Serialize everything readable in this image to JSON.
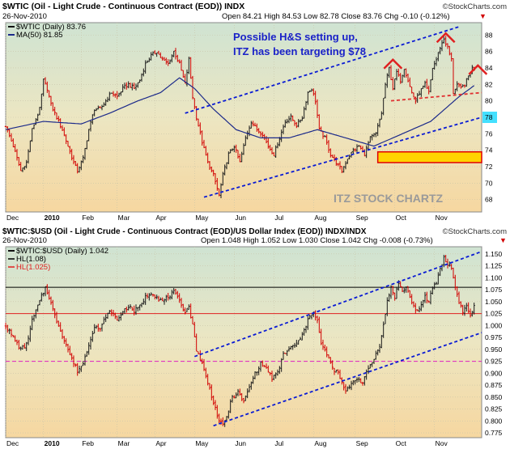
{
  "colors": {
    "price_up": "#1a1a1a",
    "price_down": "#d10000",
    "ma": "#1c2a8a",
    "channel": "#0a1bd4",
    "neckline": "#e03030",
    "hs_marker": "#e02020",
    "hl_black": "#000000",
    "hl_red": "#e02020",
    "hl_pink": "#e020c0",
    "annotation_text": "#1a22c8",
    "watermark": "#9a9a9a",
    "price_label_bg": "#44e0ff",
    "target_box": "#ffd400",
    "target_box_border": "#e00000"
  },
  "header": {
    "brand": "©StockCharts.com"
  },
  "chart_data": [
    {
      "type": "line",
      "panel": "top",
      "symbol_line": "$WTIC (Oil - Light Crude - Continuous Contract (EOD)) INDX",
      "date": "26-Nov-2010",
      "ohlc_line": "Open 84.21  High 84.53  Low 82.78  Close 83.76  Chg -0.10 (-0.12%)",
      "legend": [
        {
          "label": "$WTIC (Daily) 83.76",
          "key": "price"
        },
        {
          "label": "MA(50) 81.85",
          "key": "ma"
        }
      ],
      "annotation": [
        "Possible H&S setting up,",
        "ITZ has been targeting $78"
      ],
      "watermark": "ITZ STOCK CHARTZ",
      "current_price_label": "78",
      "y_ticks": [
        "68",
        "70",
        "72",
        "74",
        "76",
        "78",
        "80",
        "82",
        "84",
        "86",
        "88"
      ],
      "ylim": [
        66.5,
        89.5
      ],
      "x_ticks": [
        "Dec",
        "2010",
        "Feb",
        "Mar",
        "Apr",
        "May",
        "Jun",
        "Jul",
        "Aug",
        "Sep",
        "Oct",
        "Nov"
      ],
      "x_tick_positions": [
        0,
        20,
        40,
        59,
        79,
        100,
        121,
        142,
        163,
        185,
        206,
        227
      ],
      "xlim": [
        0,
        252
      ],
      "price_anchors": [
        [
          0,
          77.0
        ],
        [
          4,
          74.5
        ],
        [
          8,
          71.5
        ],
        [
          11,
          72.5
        ],
        [
          14,
          76.5
        ],
        [
          18,
          79.0
        ],
        [
          20,
          82.5
        ],
        [
          22,
          81.5
        ],
        [
          24,
          79.5
        ],
        [
          27,
          78.0
        ],
        [
          30,
          76.5
        ],
        [
          33,
          74.5
        ],
        [
          36,
          72.5
        ],
        [
          38,
          71.5
        ],
        [
          41,
          73.0
        ],
        [
          44,
          76.5
        ],
        [
          47,
          79.0
        ],
        [
          50,
          79.0
        ],
        [
          53,
          80.0
        ],
        [
          56,
          81.0
        ],
        [
          59,
          80.5
        ],
        [
          62,
          81.5
        ],
        [
          65,
          82.0
        ],
        [
          68,
          81.5
        ],
        [
          71,
          82.5
        ],
        [
          74,
          84.5
        ],
        [
          77,
          85.5
        ],
        [
          80,
          86.0
        ],
        [
          83,
          85.0
        ],
        [
          86,
          84.5
        ],
        [
          89,
          86.0
        ],
        [
          92,
          84.5
        ],
        [
          95,
          82.0
        ],
        [
          97,
          85.0
        ],
        [
          99,
          80.5
        ],
        [
          101,
          78.0
        ],
        [
          104,
          75.0
        ],
        [
          107,
          72.5
        ],
        [
          110,
          71.0
        ],
        [
          113,
          68.5
        ],
        [
          115,
          71.0
        ],
        [
          118,
          73.5
        ],
        [
          121,
          74.5
        ],
        [
          124,
          72.5
        ],
        [
          127,
          75.5
        ],
        [
          130,
          77.5
        ],
        [
          133,
          76.5
        ],
        [
          136,
          76.0
        ],
        [
          139,
          74.5
        ],
        [
          142,
          73.5
        ],
        [
          145,
          75.5
        ],
        [
          148,
          77.5
        ],
        [
          151,
          78.0
        ],
        [
          154,
          77.0
        ],
        [
          157,
          78.0
        ],
        [
          160,
          81.0
        ],
        [
          162,
          81.5
        ],
        [
          164,
          80.0
        ],
        [
          166,
          76.5
        ],
        [
          169,
          75.5
        ],
        [
          172,
          73.5
        ],
        [
          175,
          72.5
        ],
        [
          178,
          71.5
        ],
        [
          181,
          73.0
        ],
        [
          184,
          74.0
        ],
        [
          187,
          74.5
        ],
        [
          190,
          73.5
        ],
        [
          193,
          75.5
        ],
        [
          196,
          76.0
        ],
        [
          199,
          78.5
        ],
        [
          201,
          82.0
        ],
        [
          203,
          84.0
        ],
        [
          205,
          81.5
        ],
        [
          207,
          83.5
        ],
        [
          209,
          82.5
        ],
        [
          211,
          84.0
        ],
        [
          213,
          82.5
        ],
        [
          215,
          81.0
        ],
        [
          217,
          80.0
        ],
        [
          219,
          81.0
        ],
        [
          222,
          82.0
        ],
        [
          224,
          81.0
        ],
        [
          226,
          84.0
        ],
        [
          228,
          85.0
        ],
        [
          230,
          86.5
        ],
        [
          232,
          87.5
        ],
        [
          234,
          86.5
        ],
        [
          236,
          85.0
        ],
        [
          237,
          81.0
        ],
        [
          239,
          82.0
        ],
        [
          241,
          81.5
        ],
        [
          243,
          82.0
        ],
        [
          245,
          83.0
        ],
        [
          247,
          84.0
        ],
        [
          248,
          83.76
        ]
      ],
      "ma_anchors": [
        [
          0,
          76.5
        ],
        [
          20,
          77.5
        ],
        [
          40,
          77.2
        ],
        [
          55,
          78.5
        ],
        [
          70,
          80.0
        ],
        [
          82,
          81.0
        ],
        [
          92,
          82.8
        ],
        [
          100,
          81.5
        ],
        [
          110,
          79.0
        ],
        [
          122,
          76.5
        ],
        [
          135,
          75.5
        ],
        [
          150,
          75.5
        ],
        [
          165,
          76.5
        ],
        [
          180,
          75.5
        ],
        [
          195,
          74.5
        ],
        [
          210,
          76.0
        ],
        [
          225,
          77.5
        ],
        [
          240,
          80.5
        ],
        [
          248,
          81.85
        ]
      ],
      "channel_lines": [
        [
          [
            95,
            78.5
          ],
          [
            240,
            89.0
          ]
        ],
        [
          [
            105,
            68.3
          ],
          [
            252,
            78.0
          ]
        ]
      ],
      "neckline": [
        [
          204,
          80.0
        ],
        [
          252,
          81.0
        ]
      ],
      "hs_peaks": [
        [
          205,
          85.0
        ],
        [
          233,
          88.2
        ],
        [
          250,
          84.3
        ]
      ],
      "target_box_range": [
        [
          197,
          252
        ],
        [
          72.5,
          73.8
        ]
      ]
    },
    {
      "type": "line",
      "panel": "bottom",
      "symbol_line": "$WTIC:$USD (Oil - Light Crude - Continuous Contract (EOD)/US Dollar Index (EOD)) INDX/INDX",
      "date": "26-Nov-2010",
      "ohlc_line": "Open 1.048  High 1.052  Low 1.030  Close 1.042  Chg -0.008 (-0.73%)",
      "legend": [
        {
          "label": "$WTIC:$USD (Daily) 1.042",
          "key": "price"
        },
        {
          "label": "HL(1.08)",
          "key": "hl1"
        },
        {
          "label": "HL(1.025)",
          "key": "hl2"
        }
      ],
      "y_ticks": [
        "0.775",
        "0.800",
        "0.825",
        "0.850",
        "0.875",
        "0.900",
        "0.925",
        "0.950",
        "0.975",
        "1.000",
        "1.025",
        "1.050",
        "1.075",
        "1.100",
        "1.125",
        "1.150"
      ],
      "ylim": [
        0.765,
        1.165
      ],
      "x_ticks": [
        "Dec",
        "2010",
        "Feb",
        "Mar",
        "Apr",
        "May",
        "Jun",
        "Jul",
        "Aug",
        "Sep",
        "Oct",
        "Nov"
      ],
      "x_tick_positions": [
        0,
        20,
        40,
        59,
        79,
        100,
        121,
        142,
        163,
        185,
        206,
        227
      ],
      "xlim": [
        0,
        252
      ],
      "hlines": [
        {
          "value": 1.08,
          "color_key": "hl_black",
          "style": "solid"
        },
        {
          "value": 1.025,
          "color_key": "hl_red",
          "style": "solid"
        },
        {
          "value": 0.925,
          "color_key": "hl_pink",
          "style": "dashed"
        }
      ],
      "price_anchors": [
        [
          0,
          1.0
        ],
        [
          4,
          0.975
        ],
        [
          8,
          0.95
        ],
        [
          11,
          0.96
        ],
        [
          14,
          1.01
        ],
        [
          18,
          1.05
        ],
        [
          21,
          1.08
        ],
        [
          23,
          1.06
        ],
        [
          26,
          1.02
        ],
        [
          29,
          0.99
        ],
        [
          32,
          0.96
        ],
        [
          35,
          0.93
        ],
        [
          38,
          0.905
        ],
        [
          41,
          0.92
        ],
        [
          44,
          0.96
        ],
        [
          47,
          1.0
        ],
        [
          50,
          0.99
        ],
        [
          53,
          1.02
        ],
        [
          56,
          1.03
        ],
        [
          59,
          1.01
        ],
        [
          62,
          1.03
        ],
        [
          65,
          1.04
        ],
        [
          68,
          1.03
        ],
        [
          71,
          1.04
        ],
        [
          74,
          1.06
        ],
        [
          77,
          1.07
        ],
        [
          80,
          1.06
        ],
        [
          83,
          1.05
        ],
        [
          86,
          1.06
        ],
        [
          89,
          1.07
        ],
        [
          92,
          1.05
        ],
        [
          95,
          1.03
        ],
        [
          97,
          1.04
        ],
        [
          99,
          1.0
        ],
        [
          101,
          0.95
        ],
        [
          104,
          0.92
        ],
        [
          107,
          0.88
        ],
        [
          110,
          0.84
        ],
        [
          113,
          0.8
        ],
        [
          115,
          0.79
        ],
        [
          117,
          0.81
        ],
        [
          120,
          0.85
        ],
        [
          123,
          0.86
        ],
        [
          126,
          0.84
        ],
        [
          129,
          0.87
        ],
        [
          132,
          0.9
        ],
        [
          135,
          0.92
        ],
        [
          138,
          0.91
        ],
        [
          141,
          0.89
        ],
        [
          144,
          0.9
        ],
        [
          147,
          0.94
        ],
        [
          150,
          0.95
        ],
        [
          153,
          0.96
        ],
        [
          156,
          0.97
        ],
        [
          159,
          1.0
        ],
        [
          161,
          1.02
        ],
        [
          163,
          1.03
        ],
        [
          165,
          1.01
        ],
        [
          167,
          0.96
        ],
        [
          170,
          0.94
        ],
        [
          173,
          0.91
        ],
        [
          176,
          0.9
        ],
        [
          178,
          0.88
        ],
        [
          180,
          0.86
        ],
        [
          183,
          0.88
        ],
        [
          186,
          0.89
        ],
        [
          189,
          0.88
        ],
        [
          192,
          0.91
        ],
        [
          195,
          0.93
        ],
        [
          198,
          0.96
        ],
        [
          200,
          1.0
        ],
        [
          202,
          1.05
        ],
        [
          204,
          1.08
        ],
        [
          206,
          1.06
        ],
        [
          208,
          1.09
        ],
        [
          210,
          1.07
        ],
        [
          212,
          1.08
        ],
        [
          214,
          1.06
        ],
        [
          216,
          1.04
        ],
        [
          218,
          1.03
        ],
        [
          220,
          1.04
        ],
        [
          222,
          1.06
        ],
        [
          224,
          1.05
        ],
        [
          226,
          1.08
        ],
        [
          228,
          1.09
        ],
        [
          230,
          1.12
        ],
        [
          232,
          1.14
        ],
        [
          234,
          1.13
        ],
        [
          236,
          1.12
        ],
        [
          238,
          1.08
        ],
        [
          240,
          1.05
        ],
        [
          242,
          1.03
        ],
        [
          244,
          1.04
        ],
        [
          246,
          1.02
        ],
        [
          248,
          1.042
        ]
      ],
      "channel_lines": [
        [
          [
            100,
            0.935
          ],
          [
            252,
            1.155
          ]
        ],
        [
          [
            110,
            0.79
          ],
          [
            252,
            0.985
          ]
        ]
      ]
    }
  ]
}
